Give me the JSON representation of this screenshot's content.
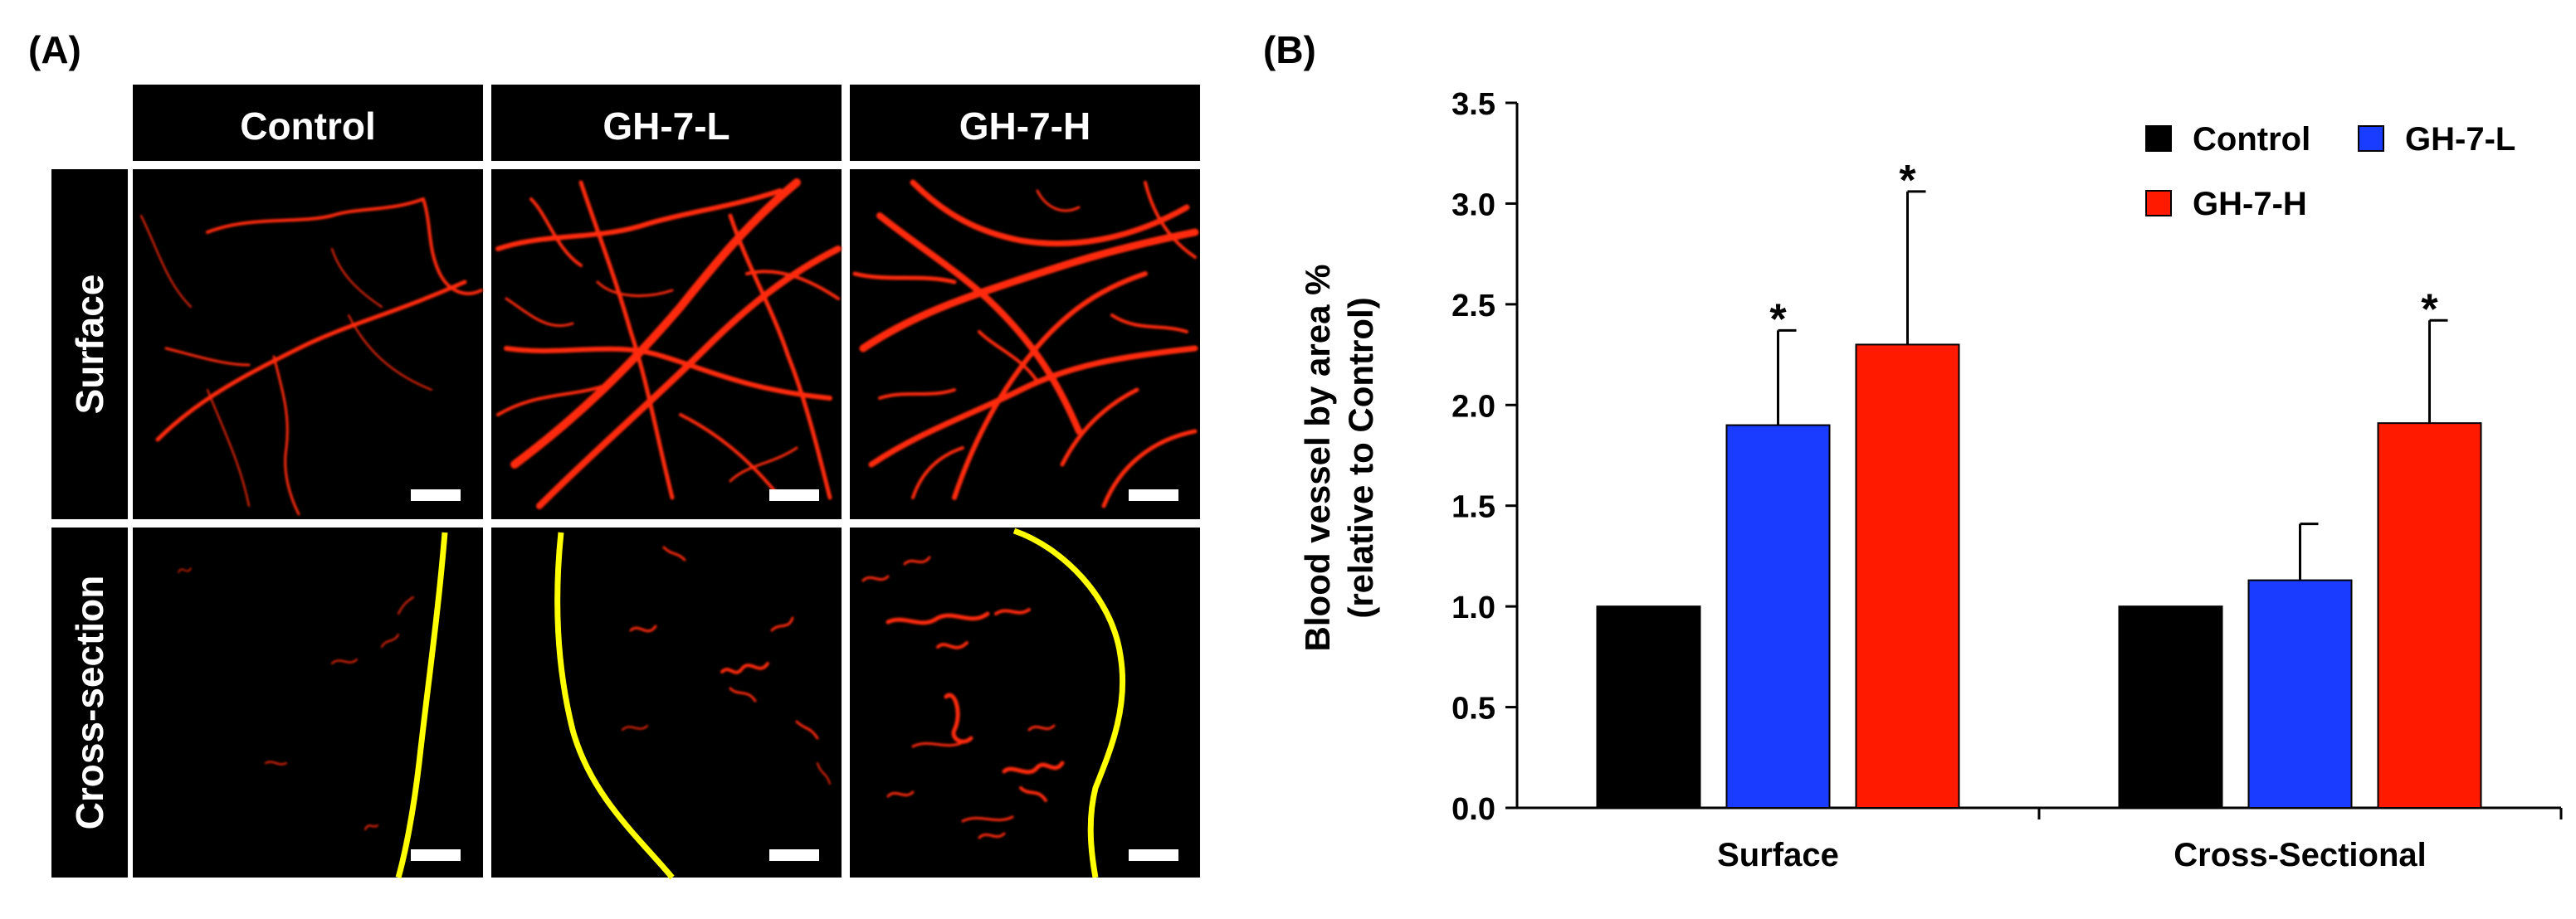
{
  "panel_a": {
    "label": "(A)",
    "columns": [
      "Control",
      "GH-7-L",
      "GH-7-H"
    ],
    "rows": [
      "Surface",
      "Cross-section"
    ]
  },
  "panel_b": {
    "label": "(B)"
  },
  "colors": {
    "control": "#000000",
    "gh7l": "#1a3cff",
    "gh7h": "#ff1a00",
    "vessel": "#ff2a10",
    "boundary": "#ffff00",
    "scalebar": "#ffffff"
  },
  "chart_data": {
    "type": "bar",
    "title": "",
    "xlabel": "",
    "ylabel": "Blood vessel by area %",
    "ylabel2": "(relative to Control)",
    "ylim": [
      0,
      3.5
    ],
    "yticks": [
      "0.0",
      "0.5",
      "1.0",
      "1.5",
      "2.0",
      "2.5",
      "3.0",
      "3.5"
    ],
    "categories": [
      "Surface",
      "Cross-Sectional"
    ],
    "legend_position": "top-right",
    "series": [
      {
        "name": "Control",
        "color": "#000000",
        "values": [
          1.0,
          1.0
        ],
        "errors": [
          0.0,
          0.0
        ],
        "significant": [
          false,
          false
        ]
      },
      {
        "name": "GH-7-L",
        "color": "#1a3cff",
        "values": [
          1.9,
          1.13
        ],
        "errors": [
          0.47,
          0.28
        ],
        "significant": [
          true,
          false
        ]
      },
      {
        "name": "GH-7-H",
        "color": "#ff1a00",
        "values": [
          2.3,
          1.91
        ],
        "errors": [
          0.76,
          0.51
        ],
        "significant": [
          true,
          true
        ]
      }
    ],
    "significance_marker": "*"
  }
}
